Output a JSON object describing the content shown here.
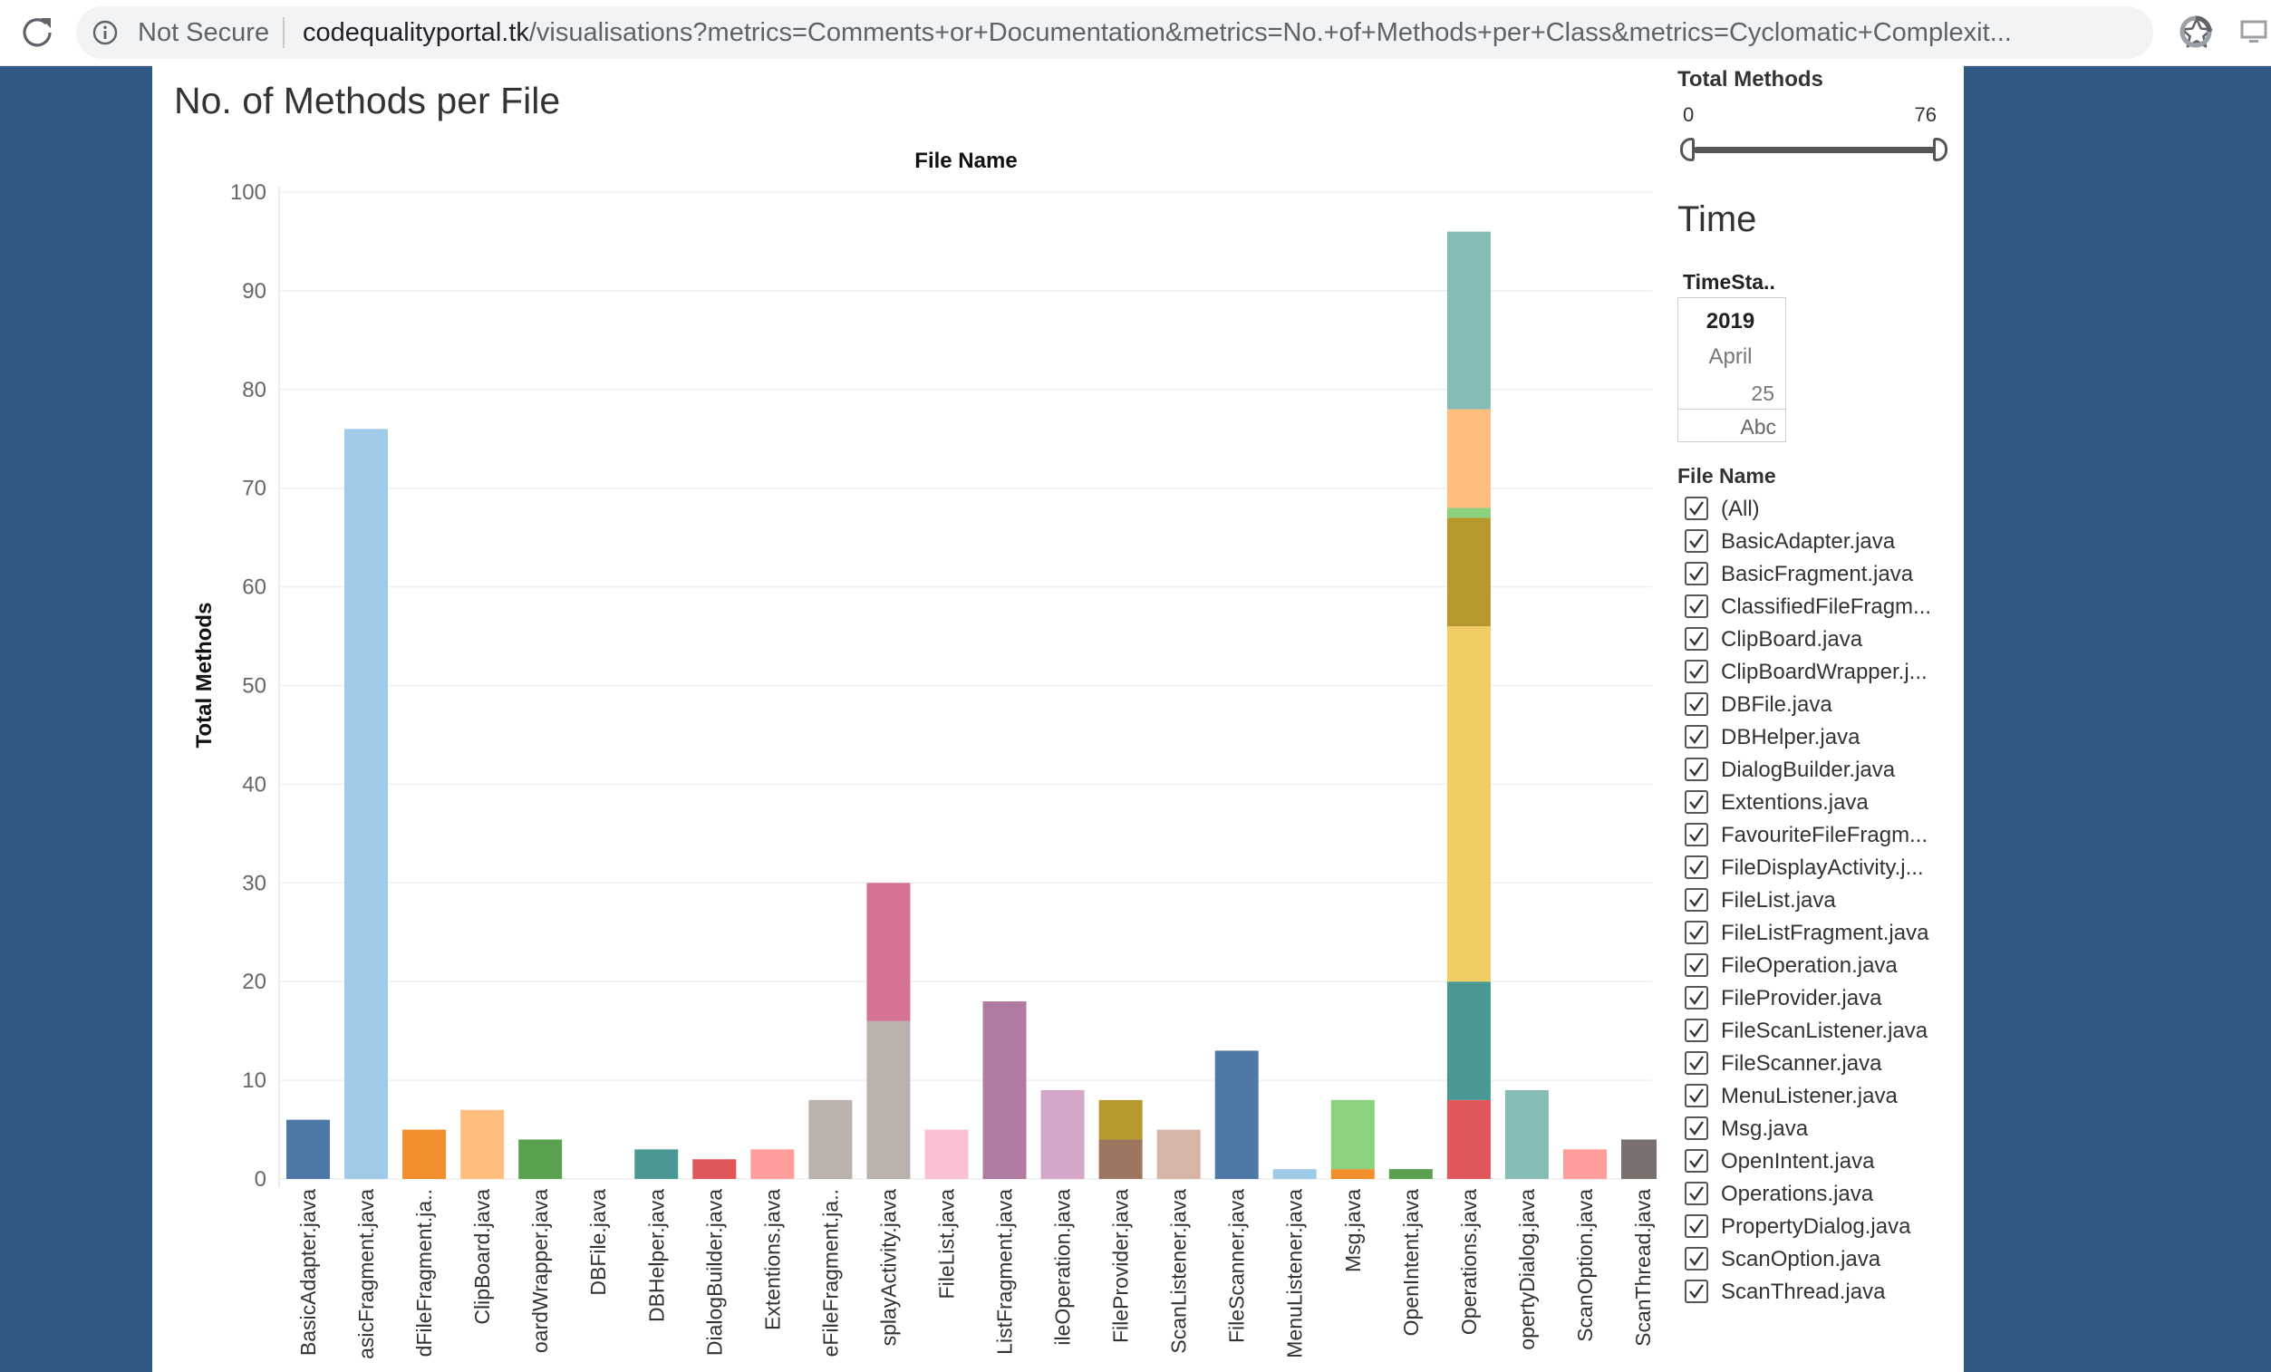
{
  "browser": {
    "security_label": "Not Secure",
    "url_host": "codequalityportal.tk",
    "url_path": "/visualisations?metrics=Comments+or+Documentation&metrics=No.+of+Methods+per+Class&metrics=Cyclomatic+Complexit..."
  },
  "page": {
    "title": "No. of Methods per File"
  },
  "chart_data": {
    "type": "bar",
    "stacked": true,
    "title": "File Name",
    "xlabel": "File Name",
    "ylabel": "Total Methods",
    "ylim": [
      0,
      100
    ],
    "yticks": [
      0,
      10,
      20,
      30,
      40,
      50,
      60,
      70,
      80,
      90,
      100
    ],
    "grid": true,
    "categories": [
      "BasicAdapter.java",
      "asicFragment.java",
      "dFileFragment.ja..",
      "ClipBoard.java",
      "oardWrapper.java",
      "DBFile.java",
      "DBHelper.java",
      "DialogBuilder.java",
      "Extentions.java",
      "eFileFragment.ja..",
      "splayActivity.java",
      "FileList.java",
      "ListFragment.java",
      "ileOperation.java",
      "FileProvider.java",
      "ScanListener.java",
      "FileScanner.java",
      "MenuListener.java",
      "Msg.java",
      "OpenIntent.java",
      "Operations.java",
      "opertyDialog.java",
      "ScanOption.java",
      "ScanThread.java"
    ],
    "bars": [
      {
        "segments": [
          {
            "value": 6,
            "color": "#4e79a7"
          }
        ]
      },
      {
        "segments": [
          {
            "value": 76,
            "color": "#a0cbe8"
          }
        ]
      },
      {
        "segments": [
          {
            "value": 5,
            "color": "#f28e2b"
          }
        ]
      },
      {
        "segments": [
          {
            "value": 7,
            "color": "#ffbe7d"
          }
        ]
      },
      {
        "segments": [
          {
            "value": 4,
            "color": "#59a14f"
          }
        ]
      },
      {
        "segments": []
      },
      {
        "segments": [
          {
            "value": 3,
            "color": "#499894"
          }
        ]
      },
      {
        "segments": [
          {
            "value": 2,
            "color": "#e15759"
          }
        ]
      },
      {
        "segments": [
          {
            "value": 3,
            "color": "#ff9d9a"
          }
        ]
      },
      {
        "segments": [
          {
            "value": 8,
            "color": "#bab0ac"
          }
        ]
      },
      {
        "segments": [
          {
            "value": 16,
            "color": "#bab0ac"
          },
          {
            "value": 14,
            "color": "#d37295"
          }
        ]
      },
      {
        "segments": [
          {
            "value": 5,
            "color": "#fabfd2"
          }
        ]
      },
      {
        "segments": [
          {
            "value": 18,
            "color": "#b07aa1"
          }
        ]
      },
      {
        "segments": [
          {
            "value": 9,
            "color": "#d4a6c8"
          }
        ]
      },
      {
        "segments": [
          {
            "value": 4,
            "color": "#9d7660"
          },
          {
            "value": 4,
            "color": "#b6992d"
          }
        ]
      },
      {
        "segments": [
          {
            "value": 5,
            "color": "#d7b5a6"
          }
        ]
      },
      {
        "segments": [
          {
            "value": 13,
            "color": "#4e79a7"
          }
        ]
      },
      {
        "segments": [
          {
            "value": 1,
            "color": "#a0cbe8"
          }
        ]
      },
      {
        "segments": [
          {
            "value": 1,
            "color": "#f28e2b"
          },
          {
            "value": 7,
            "color": "#8cd17d"
          }
        ]
      },
      {
        "segments": [
          {
            "value": 1,
            "color": "#59a14f"
          }
        ]
      },
      {
        "segments": [
          {
            "value": 8,
            "color": "#e15759"
          },
          {
            "value": 12,
            "color": "#499894"
          },
          {
            "value": 36,
            "color": "#f1ce63"
          },
          {
            "value": 11,
            "color": "#b6992d"
          },
          {
            "value": 1,
            "color": "#8cd17d"
          },
          {
            "value": 10,
            "color": "#ffbe7d"
          },
          {
            "value": 18,
            "color": "#86bcb6"
          }
        ]
      },
      {
        "segments": [
          {
            "value": 9,
            "color": "#86bcb6"
          }
        ]
      },
      {
        "segments": [
          {
            "value": 3,
            "color": "#ff9d9a"
          }
        ]
      },
      {
        "segments": [
          {
            "value": 4,
            "color": "#79706e"
          }
        ]
      }
    ]
  },
  "filters": {
    "slider": {
      "title": "Total Methods",
      "min": "0",
      "max": "76"
    },
    "time": {
      "title": "Time",
      "column_header": "TimeSta..",
      "year": "2019",
      "month": "April",
      "day": "25",
      "abc": "Abc"
    },
    "file_name": {
      "title": "File Name",
      "items": [
        "(All)",
        "BasicAdapter.java",
        "BasicFragment.java",
        "ClassifiedFileFragm...",
        "ClipBoard.java",
        "ClipBoardWrapper.j...",
        "DBFile.java",
        "DBHelper.java",
        "DialogBuilder.java",
        "Extentions.java",
        "FavouriteFileFragm...",
        "FileDisplayActivity.j...",
        "FileList.java",
        "FileListFragment.java",
        "FileOperation.java",
        "FileProvider.java",
        "FileScanListener.java",
        "FileScanner.java",
        "MenuListener.java",
        "Msg.java",
        "OpenIntent.java",
        "Operations.java",
        "PropertyDialog.java",
        "ScanOption.java",
        "ScanThread.java"
      ]
    }
  }
}
